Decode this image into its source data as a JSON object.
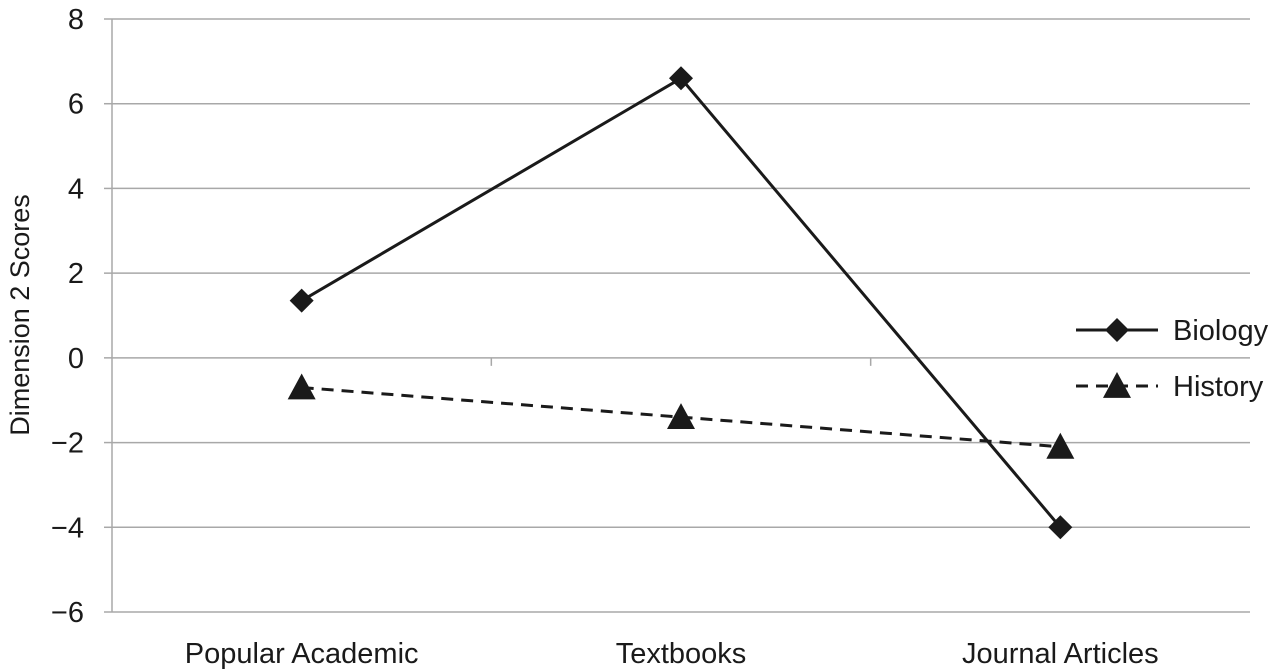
{
  "chart_data": {
    "type": "line",
    "title": "",
    "xlabel": "",
    "ylabel": "Dimension 2 Scores",
    "categories": [
      "Popular Academic",
      "Textbooks",
      "Journal Articles"
    ],
    "ylim": [
      -6,
      8
    ],
    "yticks": [
      8,
      6,
      4,
      2,
      0,
      -2,
      -4,
      -6
    ],
    "ytick_labels": [
      "8",
      "6",
      "4",
      "2",
      "0",
      "−2",
      "−4",
      "−6"
    ],
    "grid": true,
    "legend": "right",
    "series": [
      {
        "name": "Biology",
        "values": [
          1.35,
          6.6,
          -4.0
        ],
        "marker": "diamond",
        "line_style": "solid",
        "color": "#1a1a1a"
      },
      {
        "name": "History",
        "values": [
          -0.7,
          -1.4,
          -2.1
        ],
        "marker": "triangle",
        "line_style": "dashed",
        "color": "#1a1a1a"
      }
    ]
  }
}
